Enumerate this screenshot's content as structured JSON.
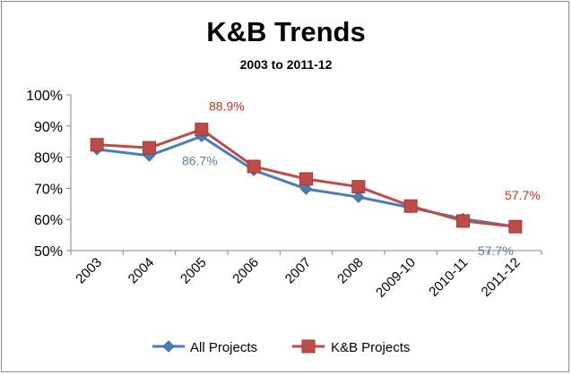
{
  "chart_data": {
    "type": "line",
    "title": "K&B Trends",
    "subtitle": "2003 to 2011-12",
    "categories": [
      "2003",
      "2004",
      "2005",
      "2006",
      "2007",
      "2008",
      "2009-10",
      "2010-11",
      "2011-12"
    ],
    "ylim": [
      50,
      100
    ],
    "yticks": [
      50,
      60,
      70,
      80,
      90,
      100
    ],
    "ytick_labels": [
      "50%",
      "60%",
      "70%",
      "80%",
      "90%",
      "100%"
    ],
    "grid": false,
    "legend_position": "bottom",
    "series": [
      {
        "name": "All Projects",
        "color": "#4a7ebb",
        "marker": "diamond",
        "values": [
          82.5,
          80.5,
          86.7,
          75.8,
          69.8,
          67.2,
          63.8,
          60.2,
          57.7
        ]
      },
      {
        "name": "K&B Projects",
        "color": "#be4b48",
        "marker": "square",
        "values": [
          84.0,
          83.0,
          88.9,
          77.0,
          73.0,
          70.5,
          64.3,
          59.5,
          57.7
        ]
      }
    ],
    "annotations": [
      {
        "series": 1,
        "index": 2,
        "text": "88.9%",
        "color": "#c0392b",
        "pos": "above"
      },
      {
        "series": 0,
        "index": 2,
        "text": "86.7%",
        "color": "#5b7ea8",
        "pos": "below"
      },
      {
        "series": 1,
        "index": 8,
        "text": "57.7%",
        "color": "#c0392b",
        "pos": "above"
      },
      {
        "series": 0,
        "index": 8,
        "text": "57.7%",
        "color": "#5b7ea8",
        "pos": "below-left"
      }
    ]
  }
}
